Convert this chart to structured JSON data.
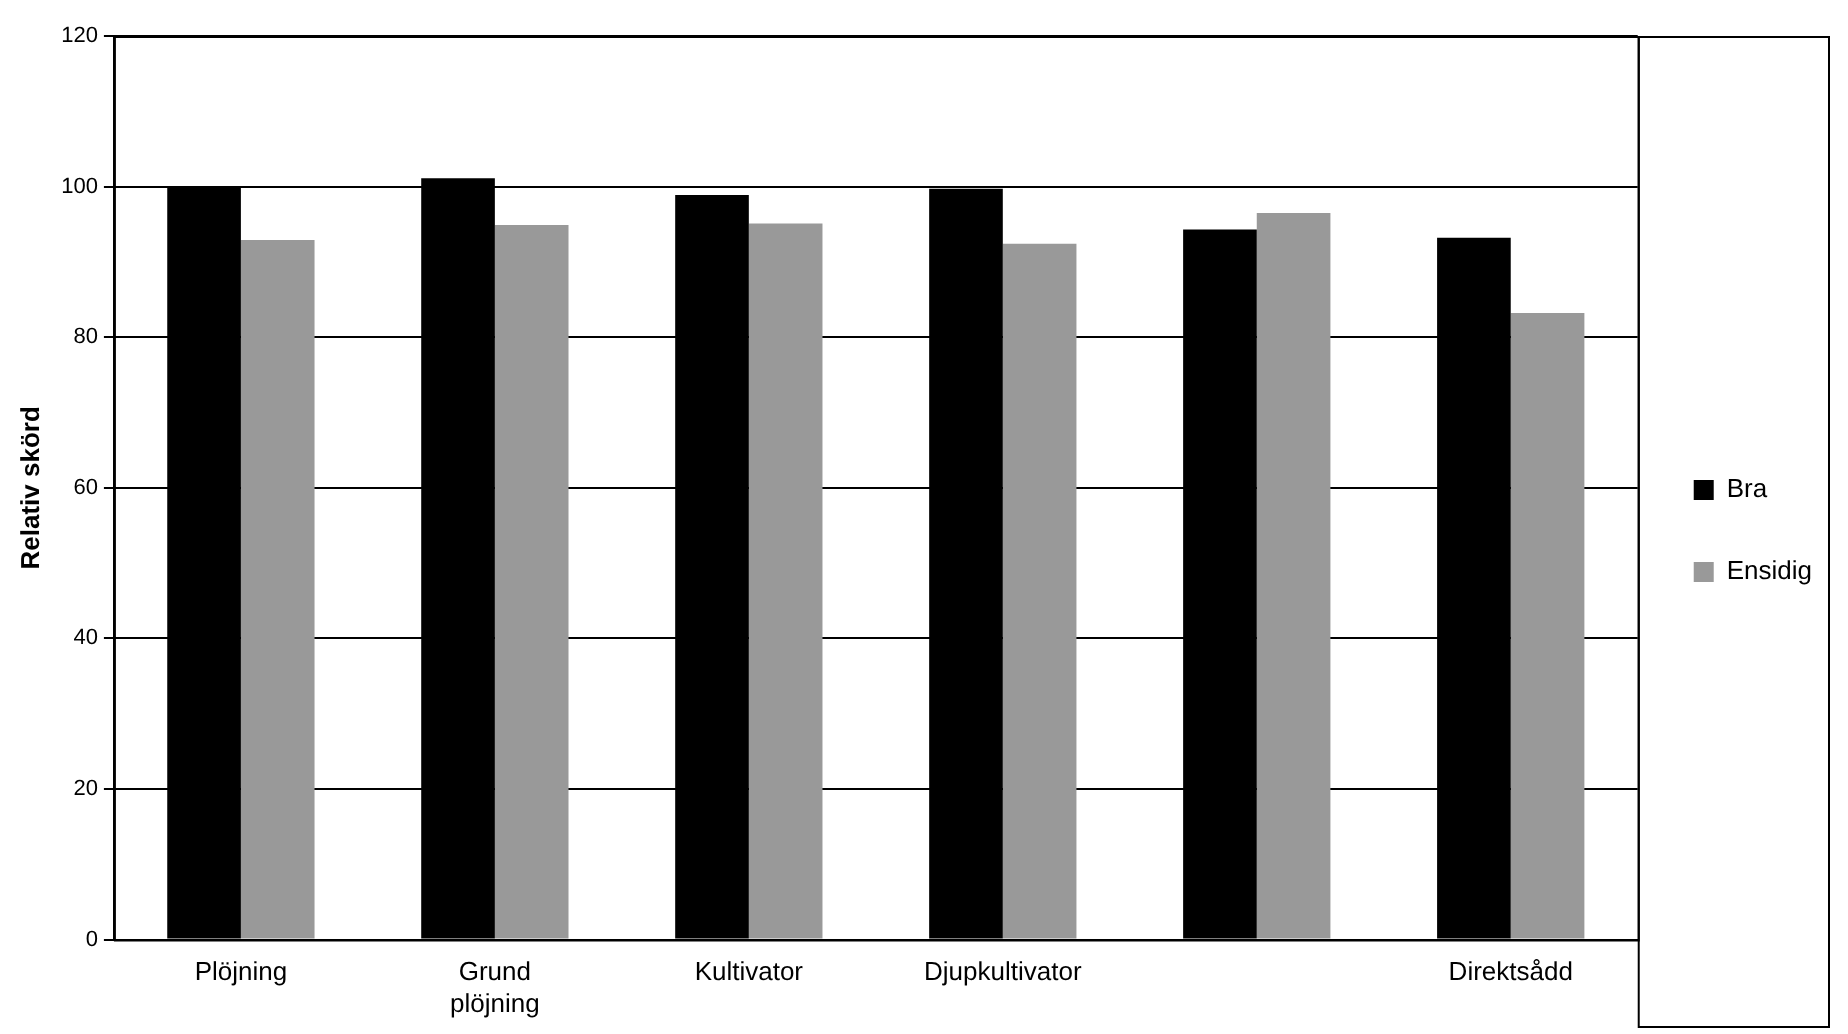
{
  "chart_data": {
    "type": "bar",
    "ylabel": "Relativ skörd",
    "categories": [
      "Plöjning",
      "Grund plöjning",
      "Kultivator",
      "Djupkultivator",
      null,
      "Direktsådd"
    ],
    "series": [
      {
        "name": "Bra",
        "color": "#000000",
        "values": [
          100,
          101.1,
          98.9,
          99.7,
          94.3,
          93.2
        ]
      },
      {
        "name": "Ensidig",
        "color": "#999999",
        "values": [
          92.9,
          94.9,
          95.1,
          92.4,
          96.5,
          83.2
        ]
      }
    ],
    "ylim": [
      0,
      120
    ],
    "yticks": [
      0,
      20,
      40,
      60,
      80,
      100,
      120
    ],
    "grid": "y",
    "legend": "right"
  }
}
